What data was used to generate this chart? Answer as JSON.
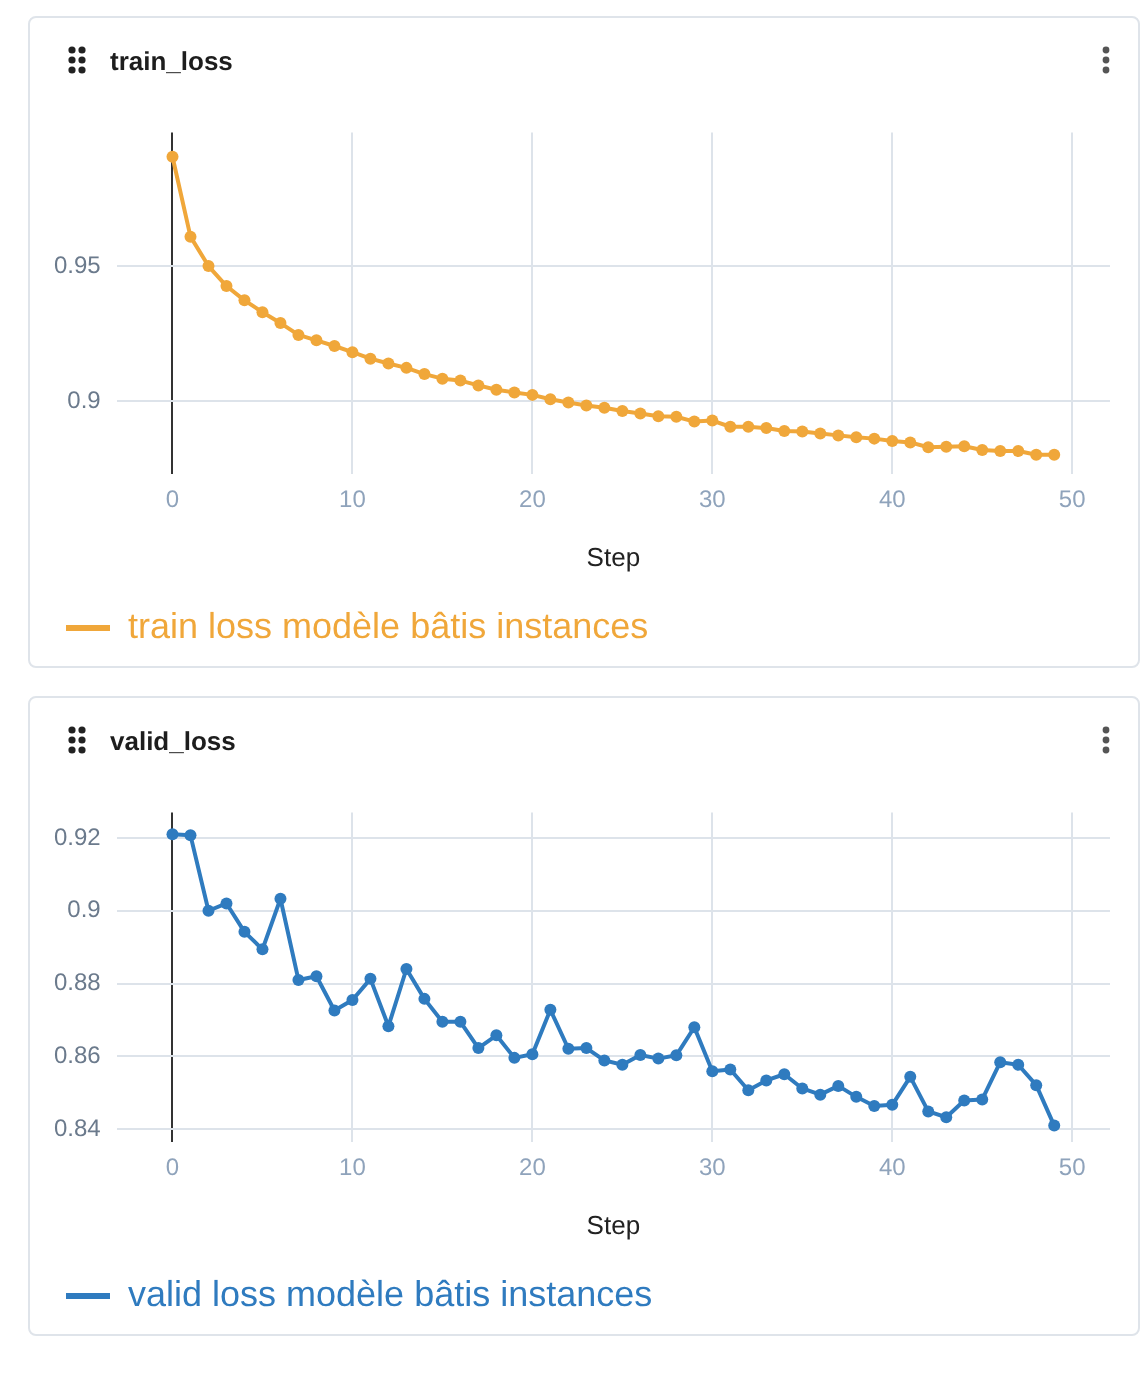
{
  "chart_data": [
    {
      "type": "line",
      "title": "train_loss",
      "xlabel": "Step",
      "x": [
        0,
        1,
        2,
        3,
        4,
        5,
        6,
        7,
        8,
        9,
        10,
        11,
        12,
        13,
        14,
        15,
        16,
        17,
        18,
        19,
        20,
        21,
        22,
        23,
        24,
        25,
        26,
        27,
        28,
        29,
        30,
        31,
        32,
        33,
        34,
        35,
        36,
        37,
        38,
        39,
        40,
        41,
        42,
        43,
        44,
        45,
        46,
        47,
        48,
        49
      ],
      "series": [
        {
          "name": "train loss modèle bâtis instances",
          "color": "#f0a73a",
          "values": [
            0.9905,
            0.9609,
            0.95,
            0.9426,
            0.9373,
            0.9329,
            0.9289,
            0.9245,
            0.9225,
            0.9204,
            0.9181,
            0.9157,
            0.9139,
            0.9123,
            0.91,
            0.9083,
            0.9076,
            0.9058,
            0.9042,
            0.9032,
            0.9023,
            0.9007,
            0.8995,
            0.8984,
            0.8975,
            0.8963,
            0.8954,
            0.8944,
            0.8942,
            0.8924,
            0.8928,
            0.8905,
            0.8905,
            0.89,
            0.8889,
            0.8887,
            0.888,
            0.8873,
            0.8866,
            0.8861,
            0.8852,
            0.8847,
            0.8829,
            0.8831,
            0.8833,
            0.8819,
            0.8815,
            0.8815,
            0.8801,
            0.8801
          ]
        }
      ],
      "xlim": [
        -3.1,
        52.1
      ],
      "xticks": [
        0,
        10,
        20,
        30,
        40,
        50
      ],
      "ylim": [
        0.873,
        0.9995
      ],
      "yticks": [
        0.9,
        0.95
      ],
      "grid": true,
      "legend": "bottom left",
      "marker": "circle"
    },
    {
      "type": "line",
      "title": "valid_loss",
      "xlabel": "Step",
      "x": [
        0,
        1,
        2,
        3,
        4,
        5,
        6,
        7,
        8,
        9,
        10,
        11,
        12,
        13,
        14,
        15,
        16,
        17,
        18,
        19,
        20,
        21,
        22,
        23,
        24,
        25,
        26,
        27,
        28,
        29,
        30,
        31,
        32,
        33,
        34,
        35,
        36,
        37,
        38,
        39,
        40,
        41,
        42,
        43,
        44,
        45,
        46,
        47,
        48,
        49
      ],
      "series": [
        {
          "name": "valid loss modèle bâtis instances",
          "color": "#2f7bbf",
          "values": [
            0.921,
            0.9207,
            0.9,
            0.902,
            0.8942,
            0.8894,
            0.9033,
            0.881,
            0.882,
            0.8726,
            0.8755,
            0.8813,
            0.8683,
            0.884,
            0.8758,
            0.8695,
            0.8695,
            0.8623,
            0.8658,
            0.8596,
            0.8606,
            0.8728,
            0.8621,
            0.8623,
            0.8589,
            0.8577,
            0.8604,
            0.8594,
            0.8603,
            0.868,
            0.8559,
            0.8564,
            0.8507,
            0.8534,
            0.8551,
            0.8512,
            0.8495,
            0.8519,
            0.8489,
            0.8464,
            0.8467,
            0.8544,
            0.8449,
            0.8433,
            0.8479,
            0.8482,
            0.8584,
            0.8577,
            0.8521,
            0.841
          ]
        }
      ],
      "xlim": [
        -3.1,
        52.1
      ],
      "xticks": [
        0,
        10,
        20,
        30,
        40,
        50
      ],
      "ylim": [
        0.8365,
        0.927
      ],
      "yticks": [
        0.84,
        0.86,
        0.88,
        0.9,
        0.92
      ],
      "grid": true,
      "legend": "bottom left",
      "marker": "circle"
    }
  ]
}
